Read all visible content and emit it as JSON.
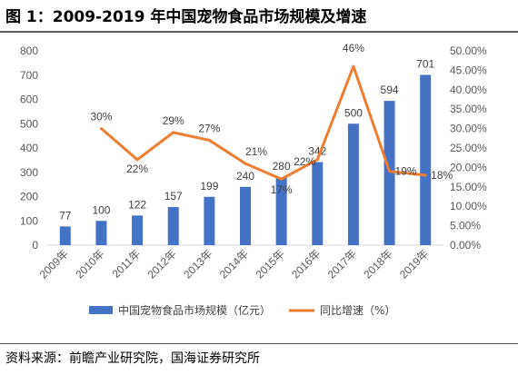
{
  "title": "图 1：2009-2019 年中国宠物食品市场规模及增速",
  "source": "资料来源：前瞻产业研究院，国海证券研究所",
  "colors": {
    "bar": "#4472c4",
    "line": "#ed7d31",
    "axis": "#d9d9d9",
    "tick": "#595959"
  },
  "chart_data": {
    "type": "bar",
    "categories": [
      "2009年",
      "2010年",
      "2011年",
      "2012年",
      "2013年",
      "2014年",
      "2015年",
      "2016年",
      "2017年",
      "2018年",
      "2019年"
    ],
    "series": [
      {
        "name": "中国宠物食品市场规模（亿元）",
        "type": "bar",
        "axis": "left",
        "values": [
          77,
          100,
          122,
          157,
          199,
          240,
          280,
          342,
          500,
          594,
          701
        ],
        "labels": [
          "77",
          "100",
          "122",
          "157",
          "199",
          "240",
          "280",
          "342",
          "500",
          "594",
          "701"
        ]
      },
      {
        "name": "同比增速（%）",
        "type": "line",
        "axis": "right",
        "values": [
          null,
          30,
          22,
          29,
          27,
          21,
          17,
          22,
          46,
          19,
          18
        ],
        "labels": [
          null,
          "30%",
          "22%",
          "29%",
          "27%",
          "21%",
          "17%",
          "22%",
          "46%",
          "19%",
          "18%"
        ]
      }
    ],
    "ylim": [
      0,
      800
    ],
    "yticks": [
      "0",
      "100",
      "200",
      "300",
      "400",
      "500",
      "600",
      "700",
      "800"
    ],
    "y2lim": [
      0,
      50
    ],
    "y2ticks": [
      "0.00%",
      "5.00%",
      "10.00%",
      "15.00%",
      "20.00%",
      "25.00%",
      "30.00%",
      "35.00%",
      "40.00%",
      "45.00%",
      "50.00%"
    ],
    "legend_position": "bottom",
    "grid": false
  }
}
